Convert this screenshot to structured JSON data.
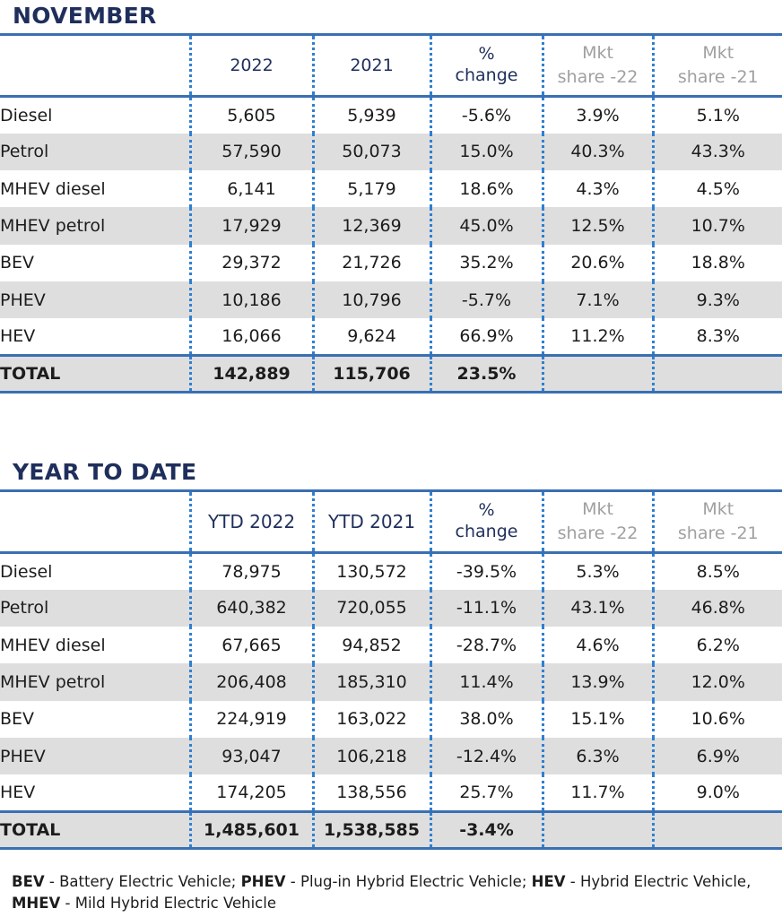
{
  "november": {
    "title": "NOVEMBER",
    "headers": {
      "col1": "2022",
      "col2": "2021",
      "pct_line1": "%",
      "pct_line2": "change",
      "mkt22_line1": "Mkt",
      "mkt22_line2": "share -22",
      "mkt21_line1": "Mkt",
      "mkt21_line2": "share -21"
    },
    "rows": [
      {
        "label": "Diesel",
        "v1": "5,605",
        "v2": "5,939",
        "pct": "-5.6%",
        "share22": "3.9%",
        "share21": "5.1%"
      },
      {
        "label": "Petrol",
        "v1": "57,590",
        "v2": "50,073",
        "pct": "15.0%",
        "share22": "40.3%",
        "share21": "43.3%"
      },
      {
        "label": "MHEV diesel",
        "v1": "6,141",
        "v2": "5,179",
        "pct": "18.6%",
        "share22": "4.3%",
        "share21": "4.5%"
      },
      {
        "label": "MHEV petrol",
        "v1": "17,929",
        "v2": "12,369",
        "pct": "45.0%",
        "share22": "12.5%",
        "share21": "10.7%"
      },
      {
        "label": "BEV",
        "v1": "29,372",
        "v2": "21,726",
        "pct": "35.2%",
        "share22": "20.6%",
        "share21": "18.8%"
      },
      {
        "label": "PHEV",
        "v1": "10,186",
        "v2": "10,796",
        "pct": "-5.7%",
        "share22": "7.1%",
        "share21": "9.3%"
      },
      {
        "label": "HEV",
        "v1": "16,066",
        "v2": "9,624",
        "pct": "66.9%",
        "share22": "11.2%",
        "share21": "8.3%"
      }
    ],
    "total": {
      "label": "TOTAL",
      "v1": "142,889",
      "v2": "115,706",
      "pct": "23.5%",
      "share22": "",
      "share21": ""
    }
  },
  "ytd": {
    "title": "YEAR TO DATE",
    "headers": {
      "col1": "YTD 2022",
      "col2": "YTD 2021",
      "pct_line1": "%",
      "pct_line2": "change",
      "mkt22_line1": "Mkt",
      "mkt22_line2": "share -22",
      "mkt21_line1": "Mkt",
      "mkt21_line2": "share -21"
    },
    "rows": [
      {
        "label": "Diesel",
        "v1": "78,975",
        "v2": "130,572",
        "pct": "-39.5%",
        "share22": "5.3%",
        "share21": "8.5%"
      },
      {
        "label": "Petrol",
        "v1": "640,382",
        "v2": "720,055",
        "pct": "-11.1%",
        "share22": "43.1%",
        "share21": "46.8%"
      },
      {
        "label": "MHEV diesel",
        "v1": "67,665",
        "v2": "94,852",
        "pct": "-28.7%",
        "share22": "4.6%",
        "share21": "6.2%"
      },
      {
        "label": "MHEV petrol",
        "v1": "206,408",
        "v2": "185,310",
        "pct": "11.4%",
        "share22": "13.9%",
        "share21": "12.0%"
      },
      {
        "label": "BEV",
        "v1": "224,919",
        "v2": "163,022",
        "pct": "38.0%",
        "share22": "15.1%",
        "share21": "10.6%"
      },
      {
        "label": "PHEV",
        "v1": "93,047",
        "v2": "106,218",
        "pct": "-12.4%",
        "share22": "6.3%",
        "share21": "6.9%"
      },
      {
        "label": "HEV",
        "v1": "174,205",
        "v2": "138,556",
        "pct": "25.7%",
        "share22": "11.7%",
        "share21": "9.0%"
      }
    ],
    "total": {
      "label": "TOTAL",
      "v1": "1,485,601",
      "v2": "1,538,585",
      "pct": "-3.4%",
      "share22": "",
      "share21": ""
    }
  },
  "footnote": {
    "bev_abbr": "BEV",
    "bev_text": " - Battery Electric Vehicle; ",
    "phev_abbr": "PHEV",
    "phev_text": " - Plug-in Hybrid Electric Vehicle; ",
    "hev_abbr": "HEV",
    "hev_text": " - Hybrid Electric Vehicle,",
    "mhev_abbr": "MHEV",
    "mhev_text": " - Mild Hybrid Electric Vehicle"
  }
}
